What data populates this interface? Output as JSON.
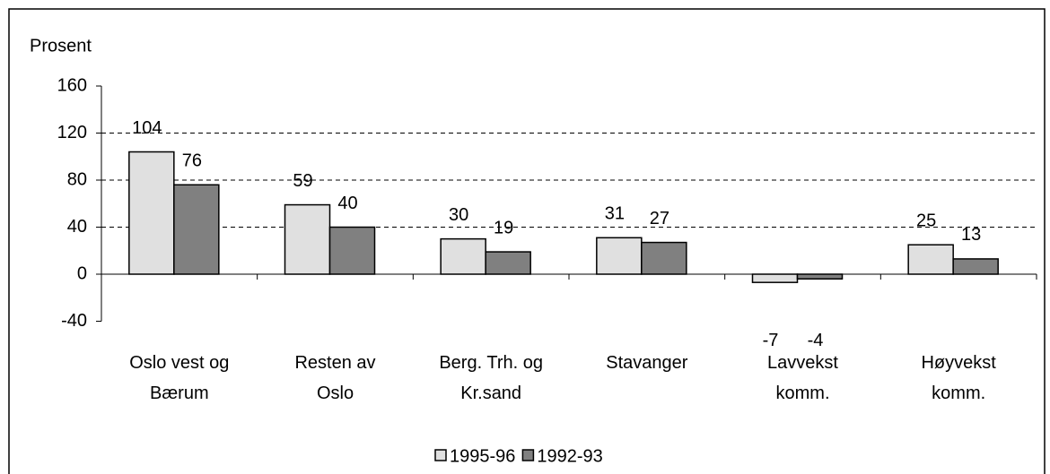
{
  "chart_data": {
    "type": "bar",
    "y_axis_label": "Prosent",
    "categories": [
      "Oslo vest og\nBærum",
      "Resten av\nOslo",
      "Berg. Trh. og\nKr.sand",
      "Stavanger",
      "Lavvekst\nkomm.",
      "Høyvekst\nkomm."
    ],
    "series": [
      {
        "name": "1995-96",
        "color": "#e0e0e0",
        "values": [
          104,
          59,
          30,
          31,
          -7,
          25
        ]
      },
      {
        "name": "1992-93",
        "color": "#808080",
        "values": [
          76,
          40,
          19,
          27,
          -4,
          13
        ]
      }
    ],
    "ylim": [
      -40,
      160
    ],
    "yticks": [
      -40,
      0,
      40,
      80,
      120,
      160
    ],
    "grid": true,
    "legend": "bottom"
  }
}
